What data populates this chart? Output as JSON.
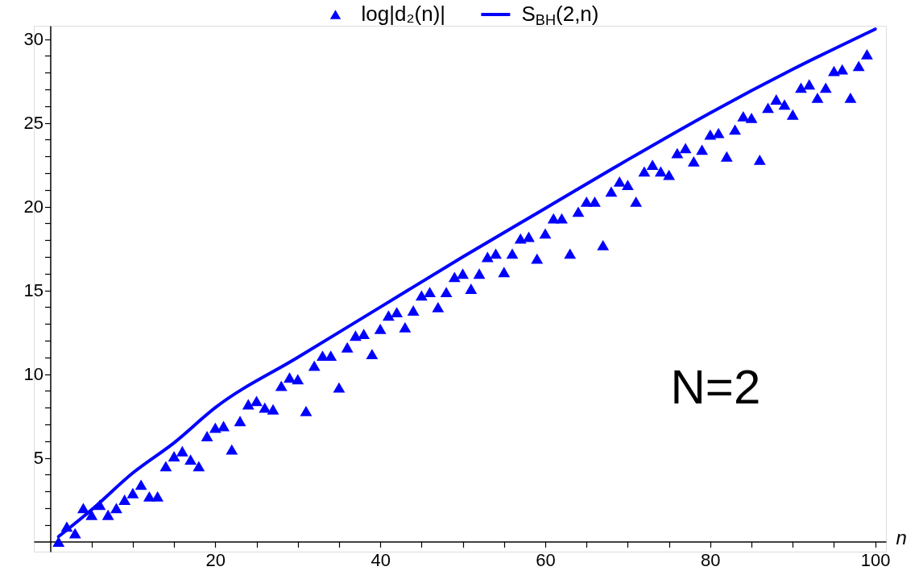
{
  "chart_data": {
    "type": "scatter",
    "xlabel": "n",
    "x": [
      1,
      2,
      3,
      4,
      5,
      6,
      7,
      8,
      9,
      10,
      11,
      12,
      13,
      14,
      15,
      16,
      17,
      18,
      19,
      20,
      21,
      22,
      23,
      24,
      25,
      26,
      27,
      28,
      29,
      30,
      31,
      32,
      33,
      34,
      35,
      36,
      37,
      38,
      39,
      40,
      41,
      42,
      43,
      44,
      45,
      46,
      47,
      48,
      49,
      50,
      51,
      52,
      53,
      54,
      55,
      56,
      57,
      58,
      59,
      60,
      61,
      62,
      63,
      64,
      65,
      66,
      67,
      68,
      69,
      70,
      71,
      72,
      73,
      74,
      75,
      76,
      77,
      78,
      79,
      80,
      81,
      82,
      83,
      84,
      85,
      86,
      87,
      88,
      89,
      90,
      91,
      92,
      93,
      94,
      95,
      96,
      97,
      98,
      99
    ],
    "series": [
      {
        "name": "log|d₂(n)|",
        "marker": "triangle",
        "color": "#0000ff",
        "values": [
          0,
          0.9,
          0.5,
          2.0,
          1.6,
          2.2,
          1.6,
          2.0,
          2.5,
          2.9,
          3.4,
          2.7,
          2.7,
          4.5,
          5.1,
          5.4,
          4.9,
          4.5,
          6.3,
          6.8,
          6.9,
          5.5,
          7.2,
          8.2,
          8.4,
          8.0,
          7.9,
          9.3,
          9.8,
          9.7,
          7.8,
          10.5,
          11.1,
          11.1,
          9.2,
          11.6,
          12.3,
          12.4,
          11.2,
          12.7,
          13.5,
          13.7,
          12.8,
          13.8,
          14.7,
          14.9,
          14.0,
          14.9,
          15.8,
          16.0,
          15.1,
          16.0,
          17.0,
          17.2,
          16.1,
          17.2,
          18.1,
          18.2,
          16.9,
          18.4,
          19.3,
          19.3,
          17.2,
          19.7,
          20.3,
          20.3,
          17.7,
          20.9,
          21.5,
          21.3,
          20.3,
          22.1,
          22.5,
          22.1,
          21.9,
          23.2,
          23.5,
          22.7,
          23.4,
          24.3,
          24.4,
          23.0,
          24.6,
          25.4,
          25.3,
          22.8,
          25.9,
          26.4,
          26.1,
          25.5,
          27.1,
          27.3,
          26.5,
          27.1,
          28.1,
          28.2,
          26.5,
          28.4,
          29.1
        ]
      },
      {
        "name": "S$_{BH}$(2,n)",
        "type": "line",
        "color": "#0000ff",
        "line_style": "solid",
        "x": [
          1,
          5,
          10,
          15,
          20,
          30,
          40,
          50,
          60,
          70,
          80,
          90,
          100
        ],
        "values": [
          0.3,
          1.9,
          4.1,
          5.9,
          8.0,
          11.0,
          14.0,
          17.0,
          19.9,
          22.8,
          25.6,
          28.2,
          30.6
        ]
      }
    ],
    "annotations": [
      "N=2"
    ],
    "xlim": [
      -2,
      101.3
    ],
    "ylim": [
      -0.6,
      30.8
    ],
    "xticks": [
      {
        "value": 5,
        "label": null
      },
      {
        "value": 10,
        "label": null
      },
      {
        "value": 15,
        "label": null
      },
      20,
      {
        "value": 25,
        "label": null
      },
      {
        "value": 30,
        "label": null
      },
      {
        "value": 35,
        "label": null
      },
      40,
      {
        "value": 45,
        "label": null
      },
      {
        "value": 50,
        "label": null
      },
      {
        "value": 55,
        "label": null
      },
      60,
      {
        "value": 65,
        "label": null
      },
      {
        "value": 70,
        "label": null
      },
      {
        "value": 75,
        "label": null
      },
      80,
      {
        "value": 85,
        "label": null
      },
      {
        "value": 90,
        "label": null
      },
      {
        "value": 95,
        "label": null
      },
      100
    ],
    "yticks": [
      {
        "value": 1,
        "label": null
      },
      {
        "value": 2,
        "label": null
      },
      {
        "value": 3,
        "label": null
      },
      {
        "value": 4,
        "label": null
      },
      5,
      {
        "value": 6,
        "label": null
      },
      {
        "value": 7,
        "label": null
      },
      {
        "value": 8,
        "label": null
      },
      {
        "value": 9,
        "label": null
      },
      10,
      {
        "value": 11,
        "label": null
      },
      {
        "value": 12,
        "label": null
      },
      {
        "value": 13,
        "label": null
      },
      {
        "value": 14,
        "label": null
      },
      15,
      {
        "value": 16,
        "label": null
      },
      {
        "value": 17,
        "label": null
      },
      {
        "value": 18,
        "label": null
      },
      {
        "value": 19,
        "label": null
      },
      20,
      {
        "value": 21,
        "label": null
      },
      {
        "value": 22,
        "label": null
      },
      {
        "value": 23,
        "label": null
      },
      {
        "value": 24,
        "label": null
      },
      25,
      {
        "value": 26,
        "label": null
      },
      {
        "value": 27,
        "label": null
      },
      {
        "value": 28,
        "label": null
      },
      {
        "value": 29,
        "label": null
      },
      30
    ],
    "grid": false,
    "legend": "top"
  }
}
